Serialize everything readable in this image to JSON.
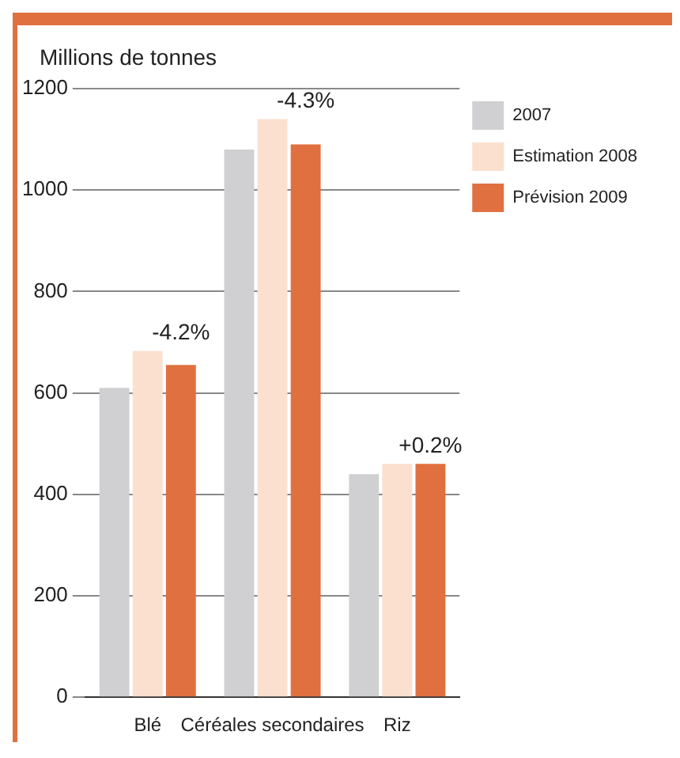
{
  "chart_data": {
    "type": "bar",
    "ylabel": "Millions de tonnes",
    "categories": [
      "Blé",
      "Céréales secondaires",
      "Riz"
    ],
    "series": [
      {
        "name": "2007",
        "color": "#d0d0d2",
        "values": [
          610,
          1080,
          440
        ]
      },
      {
        "name": "Estimation 2008",
        "color": "#fbe0cf",
        "values": [
          683,
          1140,
          460
        ]
      },
      {
        "name": "Prévision 2009",
        "color": "#e07040",
        "values": [
          655,
          1090,
          460
        ]
      }
    ],
    "ylim": [
      0,
      1200
    ],
    "yticks": [
      0,
      200,
      400,
      600,
      800,
      1000,
      1200
    ],
    "grid": "y",
    "legend": "top right",
    "annotations": [
      "-4.2%",
      "-4.3%",
      "+0.2%"
    ]
  }
}
